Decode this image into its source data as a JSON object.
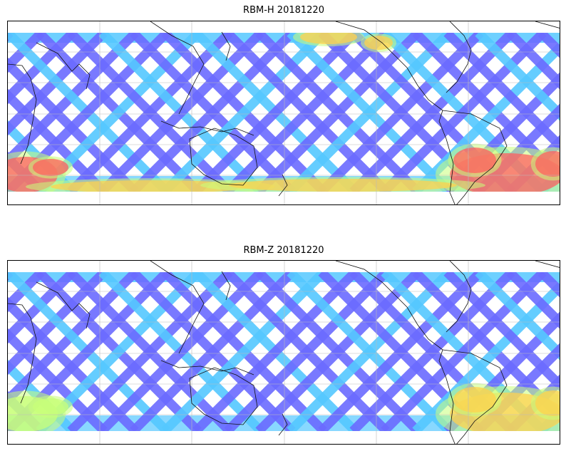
{
  "panels": [
    {
      "id": "top",
      "title": "RBM-H 20181220",
      "colormap": {
        "low": "#6b6bff",
        "mid_low": "#55c8ff",
        "mid": "#c8ff7a",
        "mid_high": "#ffd24d",
        "high": "#ff5f5f"
      },
      "hotspots": [
        {
          "region": "south-atlantic-off-south-america",
          "level": "high"
        },
        {
          "region": "south-indian-ocean-west-edge",
          "level": "high"
        },
        {
          "region": "north-pacific-top-center",
          "level": "mid_high"
        },
        {
          "region": "southern-ocean-band",
          "level": "mid_high"
        }
      ]
    },
    {
      "id": "bottom",
      "title": "RBM-Z 20181220",
      "colormap": {
        "low": "#6b6bff",
        "mid_low": "#55c8ff",
        "mid": "#c8ff7a",
        "mid_high": "#ffd24d",
        "high": "#ff8a4d"
      },
      "hotspots": [
        {
          "region": "south-atlantic-off-south-america",
          "level": "mid_high"
        },
        {
          "region": "south-indian-ocean-west-edge",
          "level": "mid"
        }
      ]
    }
  ]
}
